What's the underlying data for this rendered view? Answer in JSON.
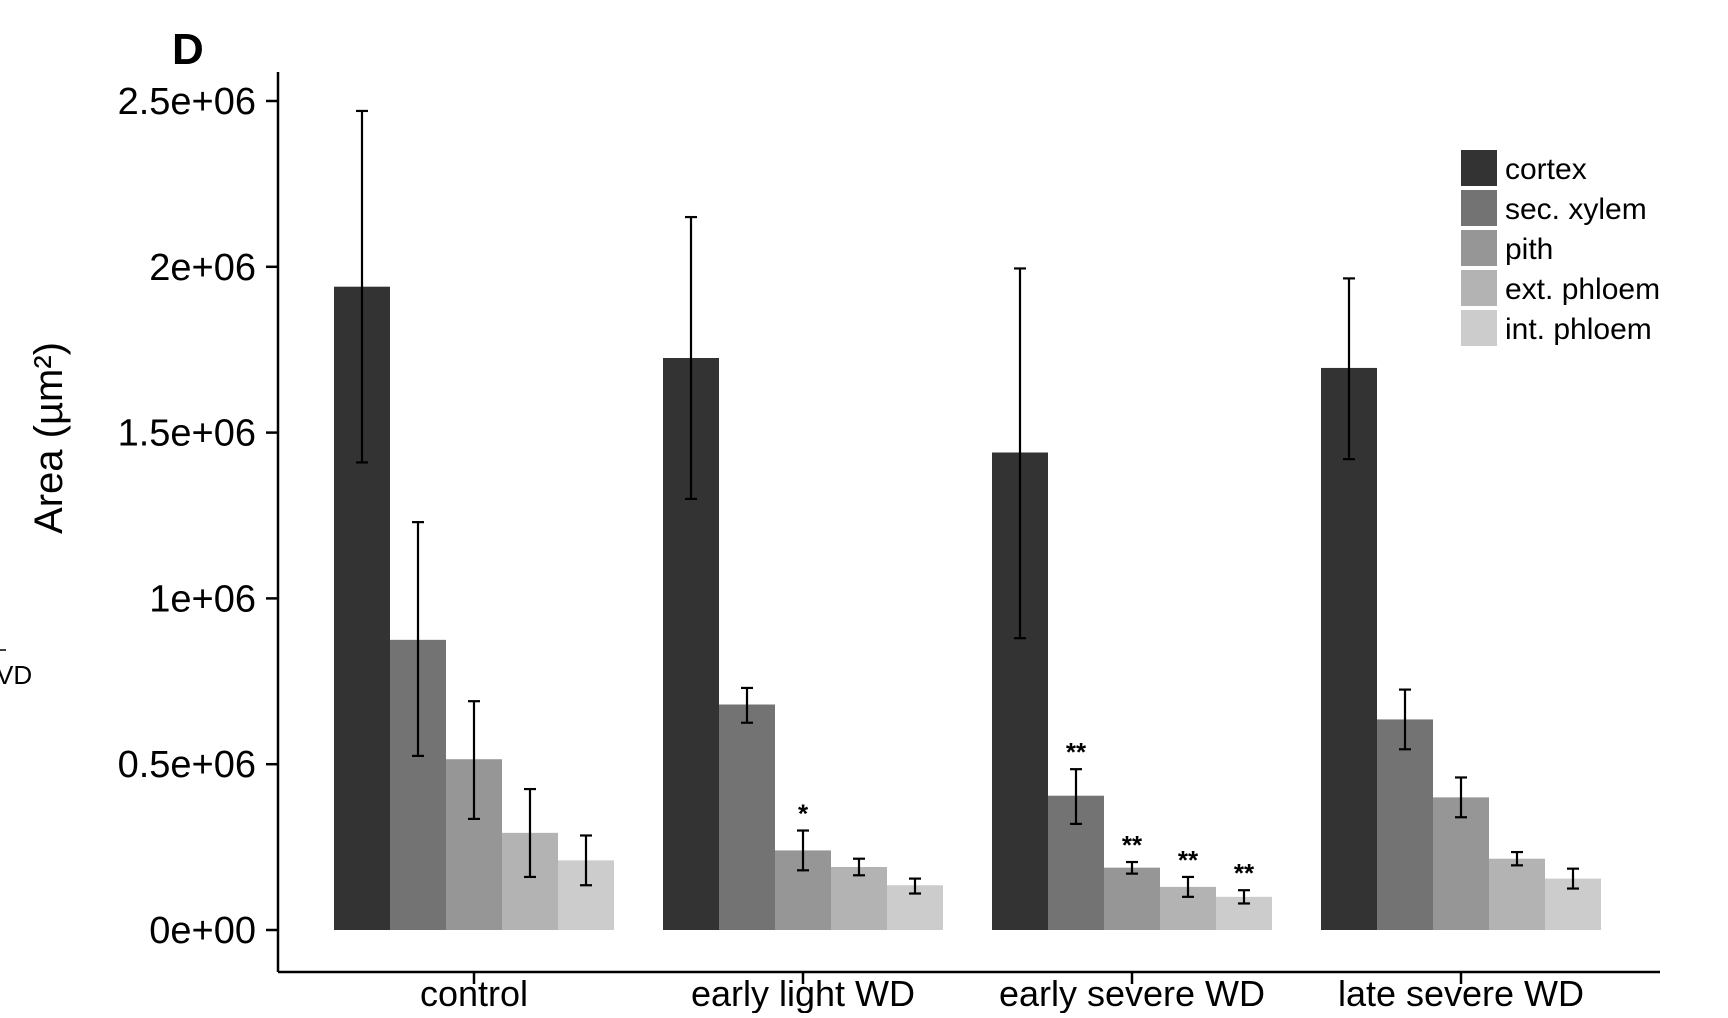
{
  "panel_label": "D",
  "edge_fragment": "VD",
  "chart_data": {
    "type": "bar",
    "title": "",
    "xlabel": "",
    "ylabel": "Area (µm²)",
    "ylim": [
      0,
      2600000
    ],
    "grid": false,
    "legend_position": "top-right",
    "y_ticks": [
      {
        "value": 0,
        "label": "0e+00"
      },
      {
        "value": 500000,
        "label": "0.5e+06"
      },
      {
        "value": 1000000,
        "label": "1e+06"
      },
      {
        "value": 1500000,
        "label": "1.5e+06"
      },
      {
        "value": 2000000,
        "label": "2e+06"
      },
      {
        "value": 2500000,
        "label": "2.5e+06"
      }
    ],
    "categories": [
      "control",
      "early light WD",
      "early severe WD",
      "late severe WD"
    ],
    "series": [
      {
        "name": "cortex",
        "color": "#333333",
        "values": [
          1940000,
          1725000,
          1440000,
          1695000
        ],
        "error_low": [
          1410000,
          1300000,
          880000,
          1420000
        ],
        "error_high": [
          2470000,
          2150000,
          1995000,
          1965000
        ],
        "significance": [
          "",
          "",
          "",
          ""
        ]
      },
      {
        "name": "sec. xylem",
        "color": "#737373",
        "values": [
          875000,
          680000,
          405000,
          635000
        ],
        "error_low": [
          525000,
          625000,
          320000,
          545000
        ],
        "error_high": [
          1230000,
          730000,
          485000,
          725000
        ],
        "significance": [
          "",
          "",
          "**",
          ""
        ]
      },
      {
        "name": "pith",
        "color": "#969696",
        "values": [
          515000,
          240000,
          188000,
          400000
        ],
        "error_low": [
          335000,
          180000,
          170000,
          340000
        ],
        "error_high": [
          690000,
          300000,
          205000,
          460000
        ],
        "significance": [
          "",
          "*",
          "**",
          ""
        ]
      },
      {
        "name": "ext. phloem",
        "color": "#b3b3b3",
        "values": [
          293000,
          190000,
          130000,
          215000
        ],
        "error_low": [
          160000,
          165000,
          100000,
          195000
        ],
        "error_high": [
          425000,
          215000,
          160000,
          235000
        ],
        "significance": [
          "",
          "",
          "**",
          ""
        ]
      },
      {
        "name": "int. phloem",
        "color": "#cccccc",
        "values": [
          210000,
          135000,
          100000,
          155000
        ],
        "error_low": [
          135000,
          110000,
          80000,
          125000
        ],
        "error_high": [
          285000,
          155000,
          120000,
          185000
        ],
        "significance": [
          "",
          "",
          "**",
          ""
        ]
      }
    ]
  }
}
